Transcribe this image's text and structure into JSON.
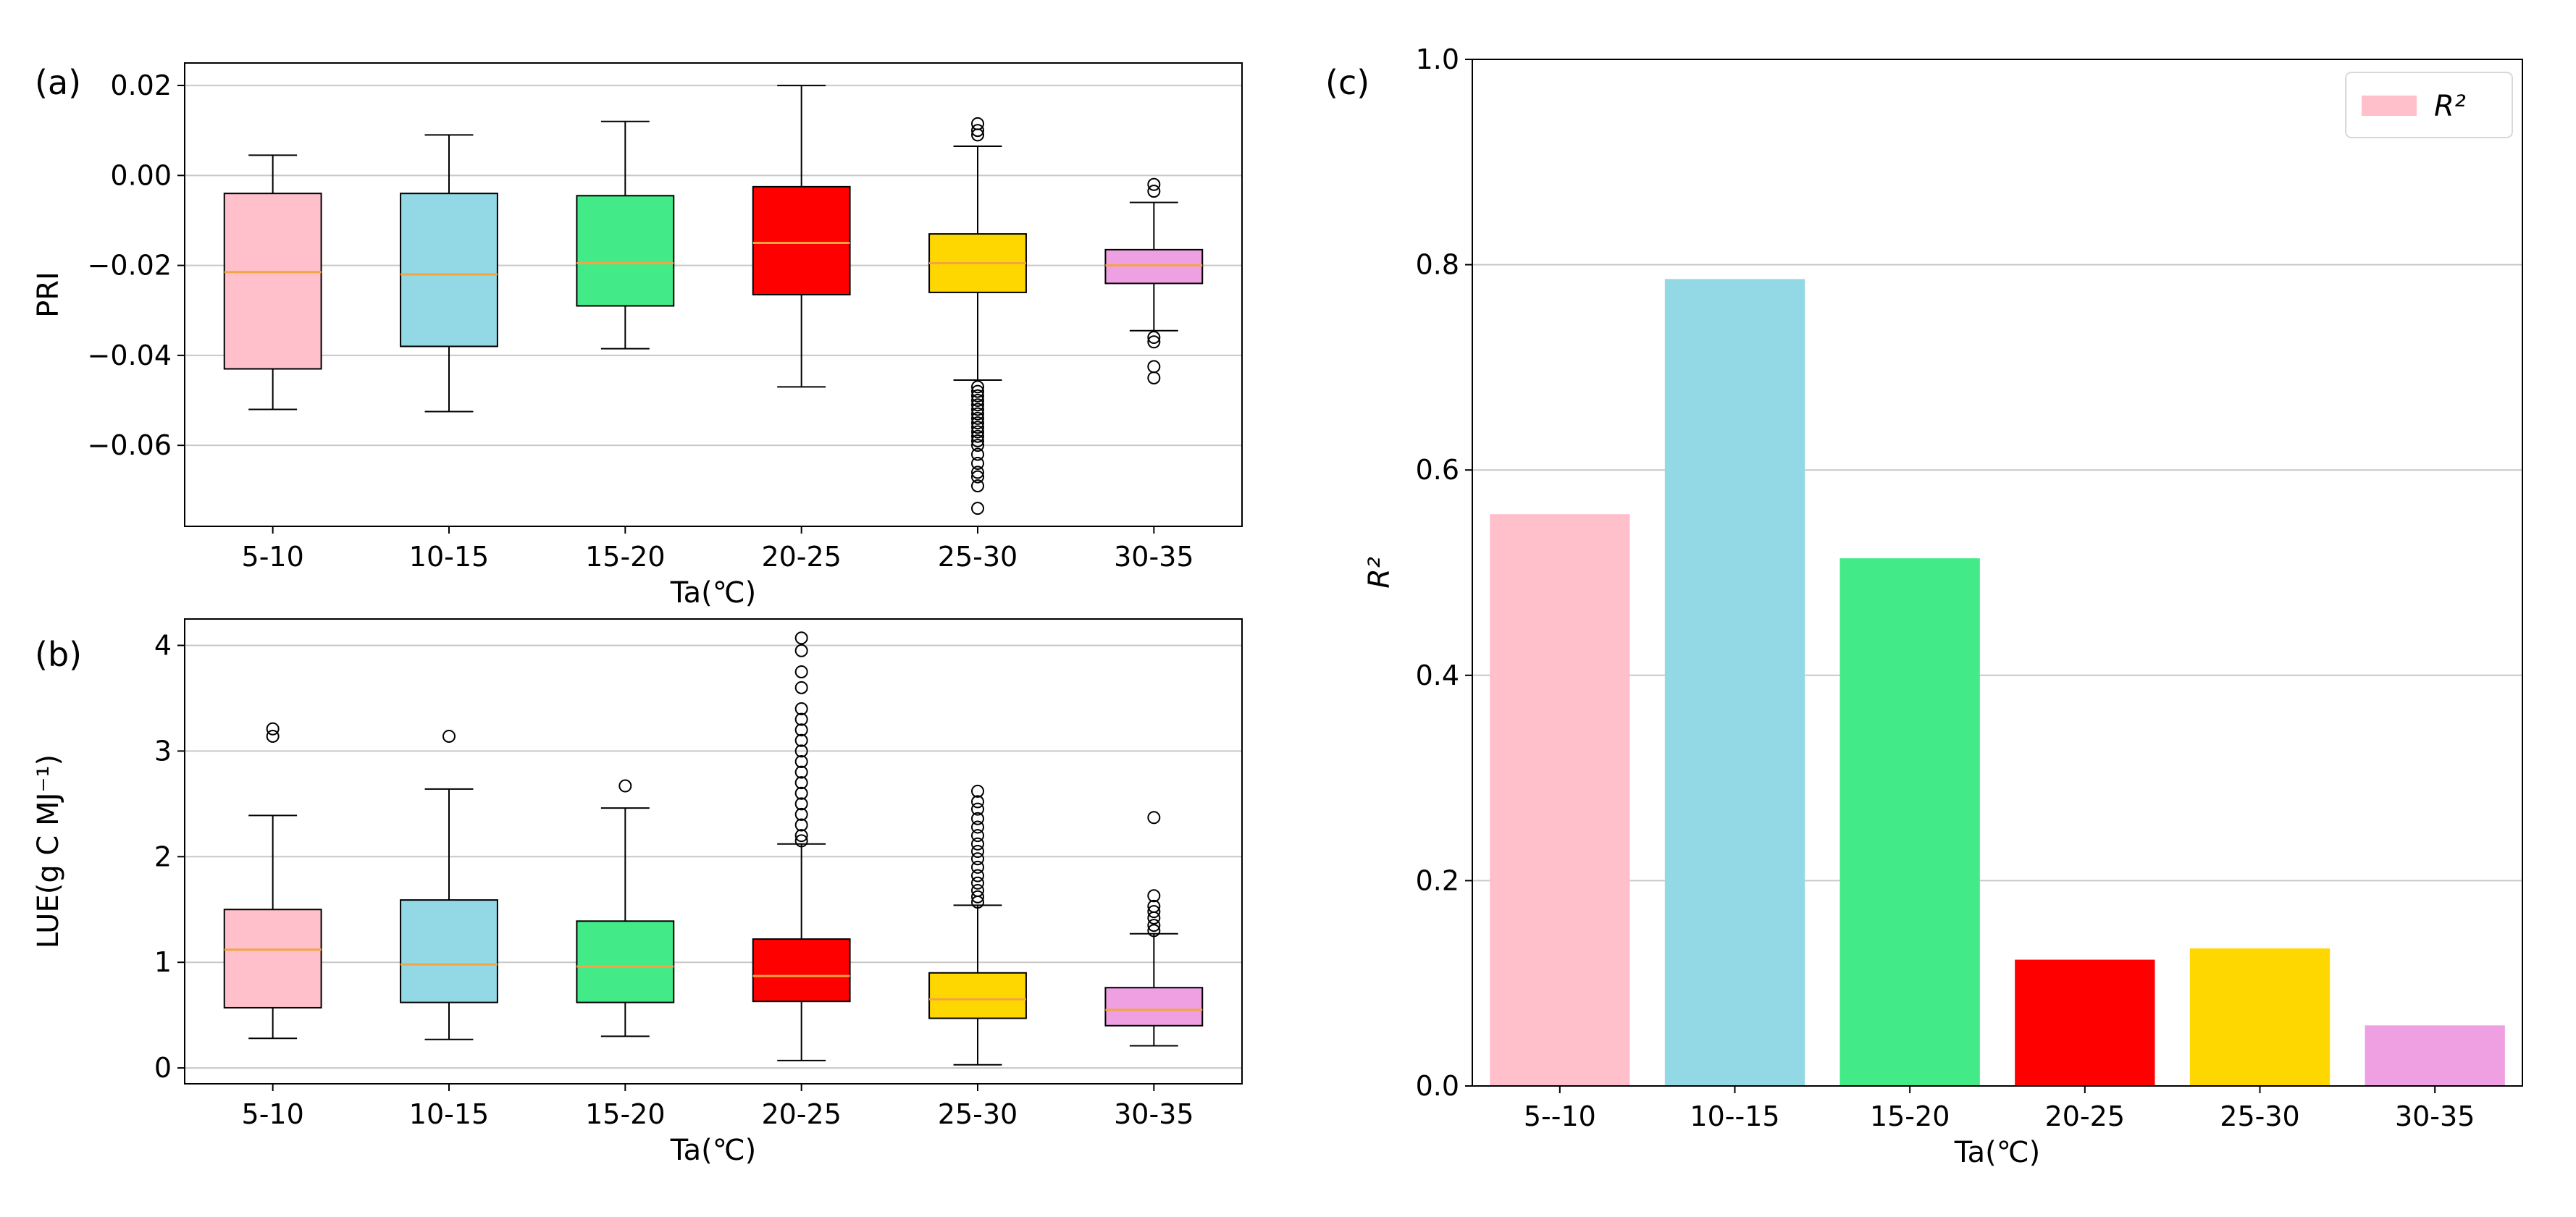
{
  "chart_data": [
    {
      "type": "box",
      "panel_label": "(a)",
      "ylabel": "PRI",
      "xlabel": "Ta(℃)",
      "ylim": [
        -0.078,
        0.025
      ],
      "yticks": [
        0.02,
        0.0,
        -0.02,
        -0.04,
        -0.06
      ],
      "ytick_labels": [
        "0.02",
        "0.00",
        "−0.02",
        "−0.04",
        "−0.06"
      ],
      "grid": true,
      "categories": [
        "5-10",
        "10-15",
        "15-20",
        "20-25",
        "25-30",
        "30-35"
      ],
      "colors": [
        "#ffc0cb",
        "#92d8e5",
        "#42eb87",
        "#ff0000",
        "#ffd700",
        "#eea0e3"
      ],
      "median_color": "#f4a442",
      "boxes": [
        {
          "whislo": -0.052,
          "q1": -0.043,
          "med": -0.0215,
          "q3": -0.004,
          "whishi": 0.0045,
          "fliers": []
        },
        {
          "whislo": -0.0525,
          "q1": -0.038,
          "med": -0.022,
          "q3": -0.004,
          "whishi": 0.009,
          "fliers": []
        },
        {
          "whislo": -0.0385,
          "q1": -0.029,
          "med": -0.0195,
          "q3": -0.0045,
          "whishi": 0.012,
          "fliers": []
        },
        {
          "whislo": -0.047,
          "q1": -0.0265,
          "med": -0.015,
          "q3": -0.0025,
          "whishi": 0.02,
          "fliers": []
        },
        {
          "whislo": -0.0455,
          "q1": -0.026,
          "med": -0.0195,
          "q3": -0.013,
          "whishi": 0.0065,
          "fliers": [
            0.0115,
            0.01,
            0.009,
            -0.047,
            -0.048,
            -0.049,
            -0.05,
            -0.051,
            -0.052,
            -0.053,
            -0.054,
            -0.055,
            -0.056,
            -0.057,
            -0.058,
            -0.059,
            -0.06,
            -0.062,
            -0.064,
            -0.066,
            -0.067,
            -0.069,
            -0.074
          ]
        },
        {
          "whislo": -0.0345,
          "q1": -0.024,
          "med": -0.02,
          "q3": -0.0165,
          "whishi": -0.006,
          "fliers": [
            -0.002,
            -0.0035,
            -0.036,
            -0.037,
            -0.0425,
            -0.045
          ]
        }
      ],
      "xtick_labels": [
        "5-10",
        "10-15",
        "15-20",
        "20-25",
        "25-30",
        "30-35"
      ]
    },
    {
      "type": "box",
      "panel_label": "(b)",
      "ylabel": "LUE(g C MJ⁻¹)",
      "xlabel": "Ta(℃)",
      "ylim": [
        -0.15,
        4.25
      ],
      "yticks": [
        4,
        3,
        2,
        1,
        0
      ],
      "ytick_labels": [
        "4",
        "3",
        "2",
        "1",
        "0"
      ],
      "grid": true,
      "categories": [
        "5-10",
        "10-15",
        "15-20",
        "20-25",
        "25-30",
        "30-35"
      ],
      "colors": [
        "#ffc0cb",
        "#92d8e5",
        "#42eb87",
        "#ff0000",
        "#ffd700",
        "#eea0e3"
      ],
      "median_color": "#f4a442",
      "boxes": [
        {
          "whislo": 0.28,
          "q1": 0.57,
          "med": 1.12,
          "q3": 1.5,
          "whishi": 2.39,
          "fliers": [
            3.14,
            3.21
          ]
        },
        {
          "whislo": 0.27,
          "q1": 0.62,
          "med": 0.98,
          "q3": 1.59,
          "whishi": 2.64,
          "fliers": [
            3.14
          ]
        },
        {
          "whislo": 0.3,
          "q1": 0.62,
          "med": 0.96,
          "q3": 1.39,
          "whishi": 2.46,
          "fliers": [
            2.67
          ]
        },
        {
          "whislo": 0.07,
          "q1": 0.63,
          "med": 0.87,
          "q3": 1.22,
          "whishi": 2.12,
          "fliers": [
            2.15,
            2.2,
            2.3,
            2.4,
            2.5,
            2.6,
            2.7,
            2.8,
            2.9,
            3.0,
            3.1,
            3.2,
            3.3,
            3.4,
            3.6,
            3.75,
            3.95,
            4.07
          ]
        },
        {
          "whislo": 0.03,
          "q1": 0.47,
          "med": 0.65,
          "q3": 0.9,
          "whishi": 1.54,
          "fliers": [
            1.57,
            1.62,
            1.68,
            1.75,
            1.82,
            1.9,
            1.98,
            2.05,
            2.12,
            2.2,
            2.28,
            2.36,
            2.45,
            2.52,
            2.62
          ]
        },
        {
          "whislo": 0.21,
          "q1": 0.4,
          "med": 0.55,
          "q3": 0.76,
          "whishi": 1.27,
          "fliers": [
            1.3,
            1.35,
            1.42,
            1.48,
            1.53,
            1.63,
            2.37
          ]
        }
      ],
      "xtick_labels": [
        "5-10",
        "10-15",
        "15-20",
        "20-25",
        "25-30",
        "30-35"
      ]
    },
    {
      "type": "bar",
      "panel_label": "(c)",
      "ylabel": "R²",
      "xlabel": "Ta(℃)",
      "ylim": [
        0,
        1.0
      ],
      "yticks": [
        0.0,
        0.2,
        0.4,
        0.6,
        0.8,
        1.0
      ],
      "ytick_labels": [
        "0.0",
        "0.2",
        "0.4",
        "0.6",
        "0.8",
        "1.0"
      ],
      "grid": true,
      "categories": [
        "5--10",
        "10--15",
        "15-20",
        "20-25",
        "25-30",
        "30-35"
      ],
      "values": [
        0.557,
        0.786,
        0.514,
        0.123,
        0.134,
        0.059
      ],
      "colors": [
        "#ffc0cb",
        "#92d8e5",
        "#42eb87",
        "#ff0000",
        "#ffd700",
        "#eea0e3"
      ],
      "legend": {
        "label": "R²",
        "placement": "top-right",
        "color": "#ffc0cb"
      }
    }
  ]
}
